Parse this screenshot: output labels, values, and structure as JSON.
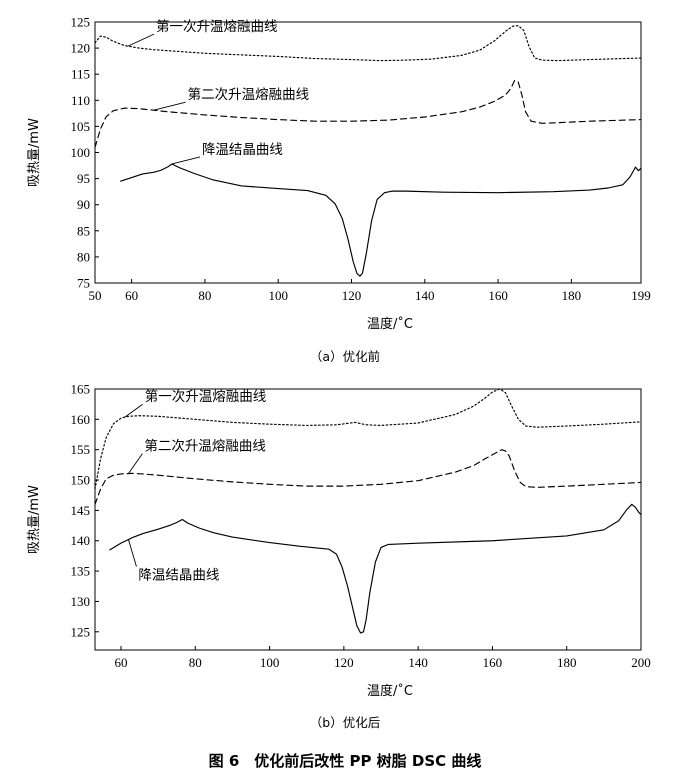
{
  "figure_caption": "图 6　优化前后改性 PP 树脂 DSC 曲线",
  "chart_data": [
    {
      "type": "line",
      "subcaption": "（a）优化前",
      "xlabel": "温度/˚C",
      "ylabel": "吸热量/mW",
      "xlim": [
        50,
        199
      ],
      "ylim": [
        75,
        125
      ],
      "xticks": [
        50,
        60,
        80,
        100,
        120,
        140,
        160,
        180,
        199
      ],
      "yticks": [
        75,
        80,
        85,
        90,
        95,
        100,
        105,
        110,
        115,
        120,
        125
      ],
      "grid": false,
      "series": [
        {
          "name": "第一次升温熔融曲线",
          "style": "dotted",
          "x": [
            50,
            51.5,
            53,
            55,
            58,
            62,
            66,
            70,
            80,
            90,
            100,
            110,
            120,
            128,
            135,
            142,
            150,
            155,
            159,
            162,
            164,
            165.5,
            167,
            168.5,
            170,
            172,
            176,
            185,
            199
          ],
          "y": [
            121,
            122.3,
            122.1,
            121.3,
            120.5,
            120.0,
            119.7,
            119.5,
            119.0,
            118.7,
            118.4,
            118.0,
            117.8,
            117.6,
            117.7,
            117.9,
            118.6,
            119.6,
            121.4,
            123.2,
            124.2,
            124.3,
            123.4,
            120.2,
            118.1,
            117.7,
            117.6,
            117.8,
            118.1
          ]
        },
        {
          "name": "第二次升温熔融曲线",
          "style": "dashed",
          "x": [
            50,
            51.5,
            53,
            55,
            58,
            62,
            66,
            70,
            80,
            90,
            100,
            110,
            120,
            130,
            140,
            150,
            155,
            159,
            162,
            163.5,
            164.5,
            165.5,
            166.5,
            167.5,
            169,
            172,
            176,
            185,
            199
          ],
          "y": [
            101,
            104.5,
            106.8,
            108.0,
            108.5,
            108.4,
            108.1,
            107.8,
            107.2,
            106.7,
            106.3,
            106.0,
            106.0,
            106.2,
            106.8,
            107.8,
            108.7,
            109.8,
            111.0,
            112.3,
            113.8,
            113.5,
            111.0,
            107.8,
            106.0,
            105.6,
            105.7,
            106.0,
            106.3
          ]
        },
        {
          "name": "降温结晶曲线",
          "style": "solid",
          "x": [
            57,
            60,
            63,
            66,
            68,
            70,
            71,
            73,
            77,
            82,
            90,
            100,
            108,
            113,
            115.5,
            117.5,
            119,
            120.5,
            121.5,
            122.3,
            123,
            124,
            125.5,
            127,
            129,
            131,
            135,
            145,
            160,
            175,
            185,
            190,
            194,
            196,
            197.5,
            198.3,
            199
          ],
          "y": [
            94.5,
            95.2,
            95.9,
            96.2,
            96.6,
            97.3,
            97.8,
            97.1,
            96.0,
            94.8,
            93.6,
            93.1,
            92.7,
            91.8,
            90.2,
            87.3,
            83.5,
            79.0,
            76.8,
            76.3,
            76.9,
            80.5,
            87.0,
            91.0,
            92.3,
            92.6,
            92.6,
            92.4,
            92.3,
            92.5,
            92.8,
            93.2,
            93.8,
            95.3,
            97.2,
            96.5,
            97.0
          ]
        }
      ],
      "annotations": [
        {
          "text": "第一次升温熔融曲线",
          "series": 0,
          "x": 59
        },
        {
          "text": "第二次升温熔融曲线",
          "series": 1,
          "x": 66
        },
        {
          "text": "降温结晶曲线",
          "series": 2,
          "x": 71
        }
      ]
    },
    {
      "type": "line",
      "subcaption": "（b）优化后",
      "xlabel": "温度/˚C",
      "ylabel": "吸热量/mW",
      "xlim": [
        53,
        200
      ],
      "ylim": [
        122,
        165
      ],
      "xticks": [
        60,
        80,
        100,
        120,
        140,
        160,
        180,
        200
      ],
      "yticks": [
        125,
        130,
        135,
        140,
        145,
        150,
        155,
        160,
        165
      ],
      "grid": false,
      "series": [
        {
          "name": "第一次升温熔融曲线",
          "style": "dotted",
          "x": [
            53,
            54.5,
            56,
            58,
            60,
            62,
            65,
            70,
            80,
            90,
            100,
            110,
            118,
            123,
            126,
            130,
            140,
            150,
            155,
            158,
            160,
            162,
            163.5,
            165,
            167,
            169,
            172,
            180,
            190,
            200
          ],
          "y": [
            148.5,
            153.5,
            157.0,
            159.3,
            160.2,
            160.5,
            160.6,
            160.5,
            160.0,
            159.5,
            159.2,
            159.0,
            159.1,
            159.5,
            159.1,
            159.0,
            159.4,
            160.8,
            162.2,
            163.5,
            164.5,
            165.0,
            164.4,
            162.4,
            160.0,
            158.9,
            158.7,
            158.9,
            159.2,
            159.6
          ]
        },
        {
          "name": "第二次升温熔融曲线",
          "style": "dashed",
          "x": [
            53,
            54.5,
            56,
            58,
            60,
            63,
            66,
            70,
            80,
            90,
            100,
            110,
            120,
            130,
            140,
            150,
            155,
            158,
            161,
            162.5,
            163.5,
            164.5,
            166,
            167.5,
            169,
            172,
            180,
            190,
            200
          ],
          "y": [
            146,
            148.5,
            150.2,
            150.8,
            151.0,
            151.1,
            151.0,
            150.8,
            150.2,
            149.7,
            149.3,
            149.0,
            149.0,
            149.3,
            149.9,
            151.3,
            152.4,
            153.5,
            154.5,
            155.0,
            154.8,
            154.0,
            151.5,
            149.6,
            148.9,
            148.8,
            149.0,
            149.3,
            149.6
          ]
        },
        {
          "name": "降温结晶曲线",
          "style": "solid",
          "x": [
            57,
            60,
            63,
            66,
            70,
            73,
            75,
            76.5,
            78,
            81,
            85,
            90,
            100,
            108,
            113,
            116,
            118,
            119.5,
            121,
            122.5,
            123.5,
            124.5,
            125.3,
            126,
            127,
            128.5,
            130,
            132,
            140,
            160,
            180,
            190,
            194,
            196,
            197.5,
            198.5,
            199.5,
            200
          ],
          "y": [
            138.5,
            139.6,
            140.5,
            141.2,
            141.9,
            142.5,
            143.0,
            143.5,
            142.9,
            142.1,
            141.3,
            140.6,
            139.7,
            139.1,
            138.8,
            138.6,
            137.8,
            135.7,
            132.5,
            128.6,
            126.0,
            124.8,
            125.0,
            127.0,
            131.5,
            136.5,
            138.9,
            139.4,
            139.6,
            140.0,
            140.8,
            141.8,
            143.3,
            145.0,
            146.0,
            145.5,
            144.6,
            144.3
          ]
        }
      ],
      "annotations": [
        {
          "text": "第一次升温熔融曲线",
          "series": 0,
          "x": 61
        },
        {
          "text": "第二次升温熔融曲线",
          "series": 1,
          "x": 62
        },
        {
          "text": "降温结晶曲线",
          "series": 2,
          "x": 62
        }
      ]
    }
  ]
}
